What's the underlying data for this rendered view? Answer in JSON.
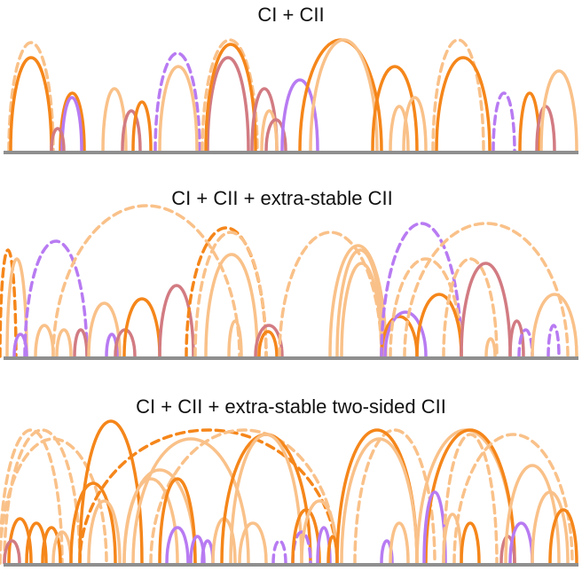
{
  "panels": [
    {
      "title": "CI + CII"
    },
    {
      "title": "CI + CII + extra-stable CII"
    },
    {
      "title": "CI + CII + extra-stable two-sided CII"
    }
  ]
}
